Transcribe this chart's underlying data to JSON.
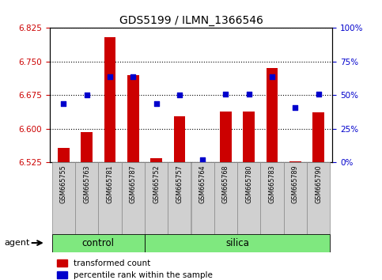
{
  "title": "GDS5199 / ILMN_1366546",
  "samples": [
    "GSM665755",
    "GSM665763",
    "GSM665781",
    "GSM665787",
    "GSM665752",
    "GSM665757",
    "GSM665764",
    "GSM665768",
    "GSM665780",
    "GSM665783",
    "GSM665789",
    "GSM665790"
  ],
  "groups": [
    "control",
    "control",
    "control",
    "control",
    "silica",
    "silica",
    "silica",
    "silica",
    "silica",
    "silica",
    "silica",
    "silica"
  ],
  "transformed_count": [
    6.558,
    6.592,
    6.805,
    6.72,
    6.535,
    6.628,
    6.523,
    6.638,
    6.638,
    6.735,
    6.527,
    6.637
  ],
  "percentile_rank": [
    44,
    50,
    64,
    64,
    44,
    50,
    2,
    51,
    51,
    64,
    41,
    51
  ],
  "ylim_left": [
    6.525,
    6.825
  ],
  "ylim_right": [
    0,
    100
  ],
  "yticks_left": [
    6.525,
    6.6,
    6.675,
    6.75,
    6.825
  ],
  "yticks_right": [
    0,
    25,
    50,
    75,
    100
  ],
  "ytick_labels_right": [
    "0%",
    "25%",
    "50%",
    "75%",
    "100%"
  ],
  "bar_color": "#cc0000",
  "dot_color": "#0000cc",
  "bar_bottom": 6.525,
  "control_indices": [
    0,
    1,
    2,
    3
  ],
  "silica_indices": [
    4,
    5,
    6,
    7,
    8,
    9,
    10,
    11
  ],
  "agent_label": "agent",
  "legend_bar": "transformed count",
  "legend_dot": "percentile rank within the sample",
  "left_tick_color": "#cc0000",
  "right_tick_color": "#0000cc",
  "green": "#7fe87f",
  "gray_bg": "#d0d0d0"
}
